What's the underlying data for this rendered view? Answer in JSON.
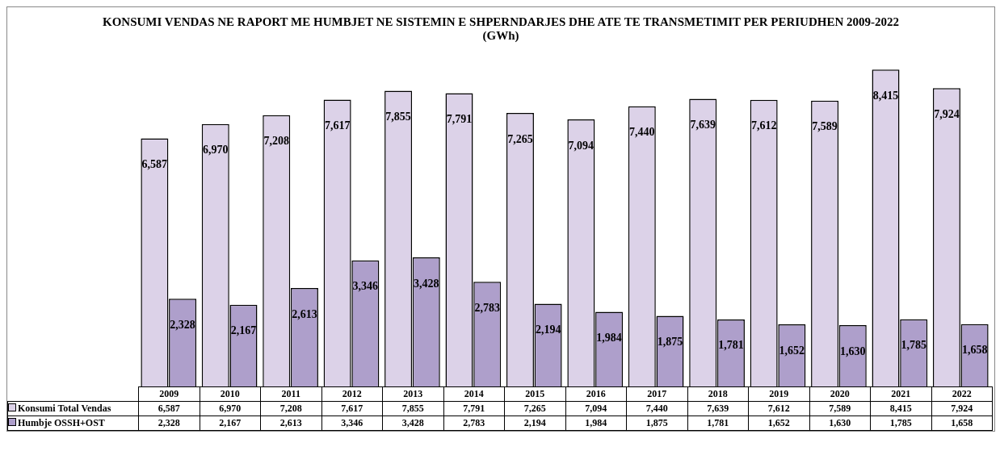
{
  "chart_data": {
    "type": "bar",
    "title": "KONSUMI VENDAS NE RAPORT ME HUMBJET NE SISTEMIN E SHPERNDARJES DHE ATE TE TRANSMETIMIT PER PERIUDHEN 2009-2022 (GWh)",
    "categories": [
      "2009",
      "2010",
      "2011",
      "2012",
      "2013",
      "2014",
      "2015",
      "2016",
      "2017",
      "2018",
      "2019",
      "2020",
      "2021",
      "2022"
    ],
    "series": [
      {
        "name": "Konsumi Total Vendas",
        "color": "#dcd2e8",
        "values": [
          6587,
          6970,
          7208,
          7617,
          7855,
          7791,
          7265,
          7094,
          7440,
          7639,
          7612,
          7589,
          8415,
          7924
        ],
        "value_labels": [
          "6,587",
          "6,970",
          "7,208",
          "7,617",
          "7,855",
          "7,791",
          "7,265",
          "7,094",
          "7,440",
          "7,639",
          "7,612",
          "7,589",
          "8,415",
          "7,924"
        ]
      },
      {
        "name": "Humbje OSSH+OST",
        "color": "#ae9fcb",
        "values": [
          2328,
          2167,
          2613,
          3346,
          3428,
          2783,
          2194,
          1984,
          1875,
          1781,
          1652,
          1630,
          1785,
          1658
        ],
        "value_labels": [
          "2,328",
          "2,167",
          "2,613",
          "3,346",
          "3,428",
          "2,783",
          "2,194",
          "1,984",
          "1,875",
          "1,781",
          "1,652",
          "1,630",
          "1,785",
          "1,658"
        ]
      }
    ],
    "legend": "bottom"
  }
}
